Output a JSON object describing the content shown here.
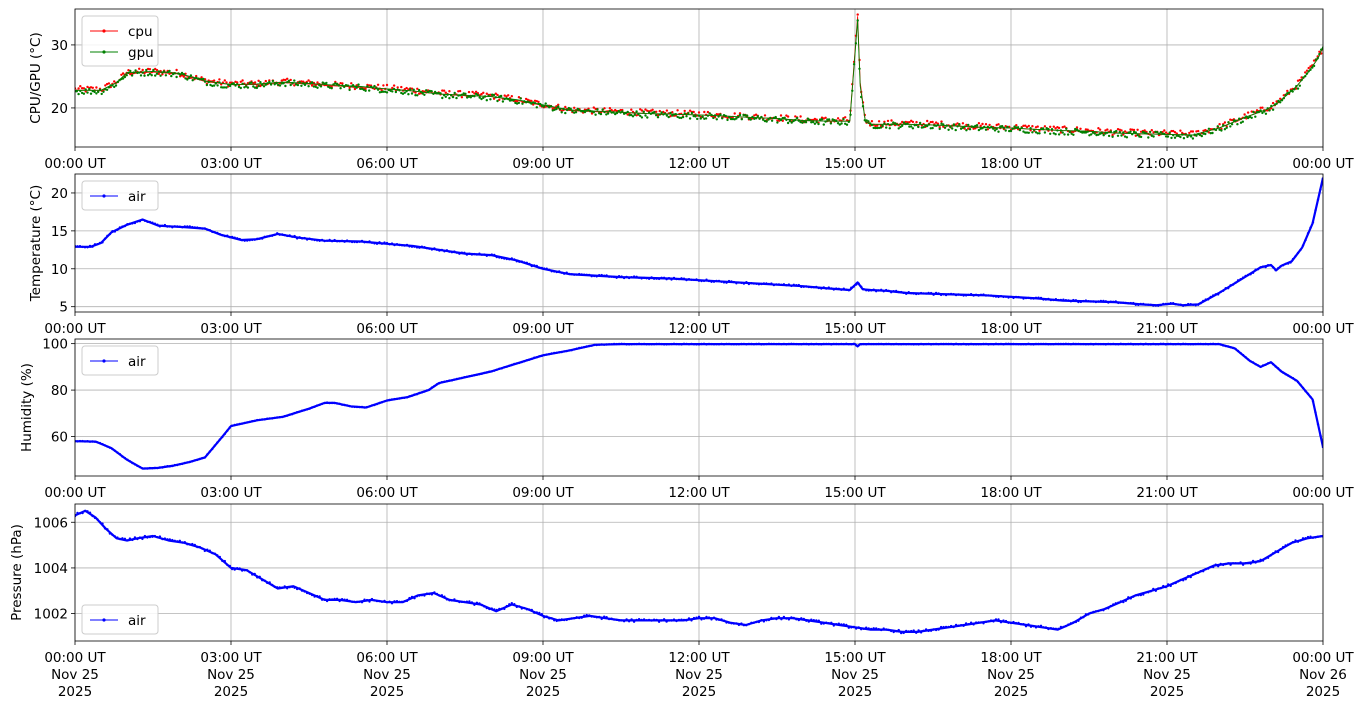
{
  "chart_data": [
    {
      "type": "line",
      "ylabel": "CPU/GPU (°C)",
      "xlim": [
        "2025-11-25T00:00Z",
        "2025-11-26T00:00Z"
      ],
      "ylim": [
        13.8,
        35.7
      ],
      "yticks": [
        20,
        30
      ],
      "x_tick_labels": [
        "00:00 UT",
        "03:00 UT",
        "06:00 UT",
        "09:00 UT",
        "12:00 UT",
        "15:00 UT",
        "18:00 UT",
        "21:00 UT",
        "00:00 UT"
      ],
      "grid": true,
      "legend": "upper left",
      "series": [
        {
          "name": "cpu",
          "color": "#ff0000",
          "x_hours": [
            0,
            0.5,
            0.8,
            1.0,
            1.5,
            2.0,
            2.5,
            3.0,
            3.5,
            4.0,
            4.5,
            5.0,
            5.5,
            6.0,
            6.5,
            7.0,
            7.5,
            8.0,
            8.5,
            9.0,
            9.5,
            10.0,
            10.5,
            11.0,
            11.5,
            12.0,
            12.5,
            13.0,
            13.5,
            14.0,
            14.5,
            14.9,
            15.0,
            15.05,
            15.1,
            15.2,
            15.3,
            15.5,
            16.0,
            16.5,
            17.0,
            17.5,
            18.0,
            18.5,
            19.0,
            19.5,
            20.0,
            20.5,
            21.0,
            21.5,
            22.0,
            22.5,
            22.9,
            23.1,
            23.3,
            23.5,
            23.7,
            23.9,
            24.0
          ],
          "y": [
            22.8,
            22.8,
            24.0,
            25.5,
            25.7,
            25.4,
            24.2,
            23.7,
            23.7,
            24.0,
            23.8,
            23.5,
            23.3,
            23.0,
            22.7,
            22.2,
            22.0,
            21.8,
            21.2,
            20.4,
            19.6,
            19.4,
            19.3,
            19.1,
            19.0,
            18.9,
            18.7,
            18.5,
            18.3,
            18.0,
            17.9,
            17.9,
            29.0,
            34.5,
            24.0,
            17.8,
            17.4,
            17.4,
            17.4,
            17.3,
            17.1,
            16.9,
            16.8,
            16.6,
            16.4,
            16.3,
            16.0,
            15.9,
            15.8,
            15.7,
            16.8,
            18.5,
            19.7,
            20.6,
            22.0,
            23.5,
            25.5,
            27.8,
            29.6
          ]
        },
        {
          "name": "gpu",
          "color": "#008000",
          "x_hours": [
            0,
            0.5,
            0.8,
            1.0,
            1.5,
            2.0,
            2.5,
            3.0,
            3.5,
            4.0,
            4.5,
            5.0,
            5.5,
            6.0,
            6.5,
            7.0,
            7.5,
            8.0,
            8.5,
            9.0,
            9.5,
            10.0,
            10.5,
            11.0,
            11.5,
            12.0,
            12.5,
            13.0,
            13.5,
            14.0,
            14.5,
            14.9,
            15.0,
            15.05,
            15.1,
            15.2,
            15.3,
            15.5,
            16.0,
            16.5,
            17.0,
            17.5,
            18.0,
            18.5,
            19.0,
            19.5,
            20.0,
            20.5,
            21.0,
            21.5,
            22.0,
            22.5,
            22.9,
            23.1,
            23.3,
            23.5,
            23.7,
            23.9,
            24.0
          ],
          "y": [
            22.8,
            22.8,
            24.0,
            25.6,
            25.8,
            25.5,
            24.3,
            23.7,
            23.8,
            24.1,
            23.9,
            23.6,
            23.4,
            23.0,
            22.7,
            22.2,
            22.0,
            21.8,
            21.3,
            20.5,
            19.7,
            19.5,
            19.3,
            19.1,
            19.0,
            18.9,
            18.7,
            18.5,
            18.3,
            18.0,
            17.9,
            17.9,
            28.5,
            34.0,
            23.5,
            17.8,
            17.4,
            17.4,
            17.4,
            17.3,
            17.1,
            16.9,
            16.8,
            16.6,
            16.4,
            16.3,
            16.0,
            15.9,
            15.8,
            15.7,
            16.8,
            18.5,
            19.7,
            20.6,
            22.0,
            23.5,
            25.5,
            27.8,
            29.8
          ]
        }
      ]
    },
    {
      "type": "line",
      "ylabel": "Temperature (°C)",
      "xlim": [
        "2025-11-25T00:00Z",
        "2025-11-26T00:00Z"
      ],
      "ylim": [
        4.3,
        22.5
      ],
      "yticks": [
        5,
        10,
        15,
        20
      ],
      "x_tick_labels": [
        "00:00 UT",
        "03:00 UT",
        "06:00 UT",
        "09:00 UT",
        "12:00 UT",
        "15:00 UT",
        "18:00 UT",
        "21:00 UT",
        "00:00 UT"
      ],
      "grid": true,
      "legend": "upper left",
      "series": [
        {
          "name": "air",
          "color": "#0000ff",
          "x_hours": [
            0,
            0.3,
            0.5,
            0.7,
            1.0,
            1.3,
            1.6,
            1.8,
            2.1,
            2.5,
            2.8,
            3.2,
            3.5,
            3.9,
            4.3,
            4.8,
            5.5,
            6.0,
            6.5,
            7.0,
            7.5,
            8.0,
            8.5,
            9.0,
            9.5,
            10.0,
            10.5,
            11.0,
            11.5,
            12.0,
            12.5,
            13.0,
            13.5,
            14.0,
            14.5,
            14.9,
            15.05,
            15.15,
            15.3,
            15.6,
            16.0,
            16.5,
            17.0,
            17.5,
            18.0,
            18.5,
            19.0,
            19.5,
            20.0,
            20.5,
            20.8,
            21.1,
            21.3,
            21.6,
            22.0,
            22.4,
            22.8,
            23.0,
            23.1,
            23.2,
            23.4,
            23.6,
            23.8,
            24.0
          ],
          "y": [
            12.9,
            12.9,
            13.4,
            14.8,
            15.8,
            16.5,
            15.7,
            15.6,
            15.5,
            15.3,
            14.5,
            13.8,
            13.9,
            14.6,
            14.1,
            13.7,
            13.6,
            13.3,
            13.0,
            12.5,
            12.0,
            11.8,
            11.1,
            10.0,
            9.3,
            9.1,
            8.9,
            8.8,
            8.7,
            8.5,
            8.3,
            8.1,
            7.9,
            7.7,
            7.4,
            7.2,
            8.2,
            7.3,
            7.2,
            7.1,
            6.8,
            6.7,
            6.6,
            6.5,
            6.3,
            6.1,
            5.8,
            5.7,
            5.6,
            5.3,
            5.2,
            5.4,
            5.2,
            5.3,
            6.8,
            8.5,
            10.2,
            10.5,
            9.8,
            10.4,
            11.0,
            12.8,
            16.0,
            22.0
          ]
        }
      ]
    },
    {
      "type": "line",
      "ylabel": "Humidity (%)",
      "xlim": [
        "2025-11-25T00:00Z",
        "2025-11-26T00:00Z"
      ],
      "ylim": [
        43,
        102
      ],
      "yticks": [
        60,
        80,
        100
      ],
      "x_tick_labels": [
        "00:00 UT",
        "03:00 UT",
        "06:00 UT",
        "09:00 UT",
        "12:00 UT",
        "15:00 UT",
        "18:00 UT",
        "21:00 UT",
        "00:00 UT"
      ],
      "grid": true,
      "legend": "upper left",
      "series": [
        {
          "name": "air",
          "color": "#0000ff",
          "x_hours": [
            0,
            0.4,
            0.7,
            1.0,
            1.3,
            1.6,
            1.9,
            2.2,
            2.5,
            2.8,
            3.0,
            3.5,
            4.0,
            4.5,
            4.8,
            5.0,
            5.3,
            5.6,
            6.0,
            6.4,
            6.8,
            7.0,
            7.5,
            8.0,
            8.5,
            9.0,
            9.5,
            10.0,
            10.5,
            14.0,
            15.0,
            15.05,
            15.1,
            16.0,
            18.0,
            20.0,
            22.0,
            22.3,
            22.6,
            22.8,
            23.0,
            23.2,
            23.5,
            23.8,
            24.0
          ],
          "y": [
            58.0,
            57.8,
            55.0,
            50.0,
            46.2,
            46.5,
            47.5,
            49.0,
            51.0,
            59.0,
            64.5,
            67.0,
            68.5,
            72.0,
            74.5,
            74.5,
            73.0,
            72.5,
            75.5,
            77.0,
            80.0,
            83.0,
            85.5,
            88.0,
            91.5,
            95.0,
            97.0,
            99.5,
            99.8,
            99.8,
            99.8,
            98.8,
            99.8,
            99.8,
            99.8,
            99.8,
            99.8,
            98.0,
            92.5,
            90.0,
            92.0,
            88.0,
            84.0,
            76.0,
            55.5
          ]
        }
      ]
    },
    {
      "type": "line",
      "ylabel": "Pressure (hPa)",
      "xlim": [
        "2025-11-25T00:00Z",
        "2025-11-26T00:00Z"
      ],
      "ylim": [
        1000.8,
        1006.8
      ],
      "yticks": [
        1002,
        1004,
        1006
      ],
      "x_tick_labels": [
        [
          "00:00 UT",
          "Nov 25",
          "2025"
        ],
        [
          "03:00 UT",
          "Nov 25",
          "2025"
        ],
        [
          "06:00 UT",
          "Nov 25",
          "2025"
        ],
        [
          "09:00 UT",
          "Nov 25",
          "2025"
        ],
        [
          "12:00 UT",
          "Nov 25",
          "2025"
        ],
        [
          "15:00 UT",
          "Nov 25",
          "2025"
        ],
        [
          "18:00 UT",
          "Nov 25",
          "2025"
        ],
        [
          "21:00 UT",
          "Nov 25",
          "2025"
        ],
        [
          "00:00 UT",
          "Nov 26",
          "2025"
        ]
      ],
      "grid": true,
      "legend": "lower left",
      "series": [
        {
          "name": "air",
          "color": "#0000ff",
          "x_hours": [
            0,
            0.2,
            0.4,
            0.6,
            0.8,
            1.0,
            1.2,
            1.5,
            1.8,
            2.1,
            2.4,
            2.7,
            3.0,
            3.3,
            3.6,
            3.9,
            4.2,
            4.5,
            4.8,
            5.1,
            5.4,
            5.7,
            6.0,
            6.3,
            6.6,
            6.9,
            7.2,
            7.5,
            7.8,
            8.1,
            8.4,
            8.7,
            9.0,
            9.3,
            9.6,
            9.9,
            10.2,
            10.5,
            10.8,
            11.1,
            11.4,
            11.7,
            12.0,
            12.3,
            12.6,
            12.9,
            13.2,
            13.5,
            13.8,
            14.1,
            14.4,
            14.7,
            15.0,
            15.3,
            15.6,
            15.9,
            16.2,
            16.5,
            16.8,
            17.1,
            17.4,
            17.7,
            18.0,
            18.3,
            18.6,
            18.9,
            19.2,
            19.5,
            19.8,
            20.1,
            20.4,
            20.7,
            21.0,
            21.3,
            21.6,
            21.9,
            22.2,
            22.5,
            22.8,
            23.1,
            23.4,
            23.7,
            24.0
          ],
          "y": [
            1006.3,
            1006.5,
            1006.2,
            1005.7,
            1005.3,
            1005.2,
            1005.3,
            1005.4,
            1005.2,
            1005.1,
            1004.9,
            1004.6,
            1004.0,
            1003.9,
            1003.5,
            1003.1,
            1003.2,
            1002.9,
            1002.6,
            1002.6,
            1002.5,
            1002.6,
            1002.5,
            1002.5,
            1002.8,
            1002.9,
            1002.6,
            1002.5,
            1002.4,
            1002.1,
            1002.4,
            1002.2,
            1001.9,
            1001.7,
            1001.8,
            1001.9,
            1001.8,
            1001.7,
            1001.7,
            1001.7,
            1001.7,
            1001.7,
            1001.8,
            1001.8,
            1001.6,
            1001.5,
            1001.7,
            1001.8,
            1001.8,
            1001.7,
            1001.6,
            1001.5,
            1001.4,
            1001.3,
            1001.3,
            1001.2,
            1001.2,
            1001.3,
            1001.4,
            1001.5,
            1001.6,
            1001.7,
            1001.6,
            1001.5,
            1001.4,
            1001.3,
            1001.6,
            1002.0,
            1002.2,
            1002.5,
            1002.8,
            1003.0,
            1003.2,
            1003.5,
            1003.8,
            1004.1,
            1004.2,
            1004.2,
            1004.3,
            1004.7,
            1005.1,
            1005.3,
            1005.4
          ]
        }
      ]
    }
  ]
}
